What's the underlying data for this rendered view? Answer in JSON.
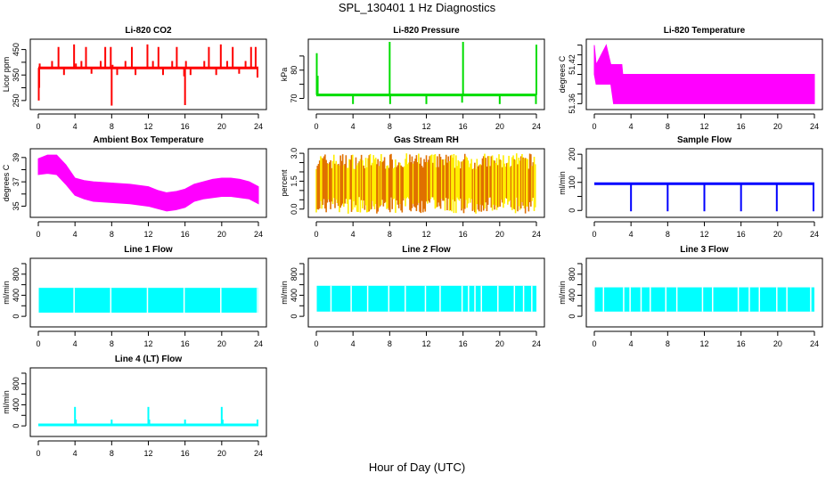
{
  "title": "SPL_130401  1 Hz Diagnostics",
  "x_axis_title": "Hour of Day (UTC)",
  "chart_data": [
    {
      "id": "co2",
      "type": "line",
      "title": "Li-820 CO2",
      "ylabel": "Licor ppm",
      "color": "#ff0000",
      "style": "spiky",
      "xlim": [
        0,
        24
      ],
      "ylim": [
        225,
        480
      ],
      "xticks": [
        0,
        4,
        8,
        12,
        16,
        20,
        24
      ],
      "yticks": [
        250,
        300,
        350,
        400,
        450
      ],
      "ytick_labels": [
        "250",
        "",
        "350",
        "",
        "450"
      ],
      "baseline": 378,
      "spikes": [
        [
          0.05,
          250
        ],
        [
          0.1,
          300
        ],
        [
          0.15,
          395
        ],
        [
          1.5,
          405
        ],
        [
          2.2,
          460
        ],
        [
          2.8,
          350
        ],
        [
          3.9,
          470
        ],
        [
          4.1,
          395
        ],
        [
          4.7,
          405
        ],
        [
          5.2,
          460
        ],
        [
          5.8,
          355
        ],
        [
          6.8,
          405
        ],
        [
          7.3,
          460
        ],
        [
          7.9,
          460
        ],
        [
          8.0,
          230
        ],
        [
          8.1,
          390
        ],
        [
          8.6,
          350
        ],
        [
          9.5,
          405
        ],
        [
          10.2,
          460
        ],
        [
          10.6,
          350
        ],
        [
          11.9,
          470
        ],
        [
          12.5,
          405
        ],
        [
          13.1,
          460
        ],
        [
          13.6,
          350
        ],
        [
          14.6,
          405
        ],
        [
          15.1,
          460
        ],
        [
          15.9,
          345
        ],
        [
          16.0,
          232
        ],
        [
          16.1,
          405
        ],
        [
          16.6,
          350
        ],
        [
          18.1,
          405
        ],
        [
          18.6,
          460
        ],
        [
          19.4,
          350
        ],
        [
          19.9,
          470
        ],
        [
          20.6,
          405
        ],
        [
          21.2,
          460
        ],
        [
          21.9,
          355
        ],
        [
          22.6,
          405
        ],
        [
          23.2,
          460
        ],
        [
          23.7,
          460
        ],
        [
          23.9,
          340
        ]
      ]
    },
    {
      "id": "pressure",
      "type": "line",
      "title": "Li-820 Pressure",
      "ylabel": "kPa",
      "color": "#00dd00",
      "style": "spiky",
      "xlim": [
        0,
        24
      ],
      "ylim": [
        67,
        90
      ],
      "xticks": [
        0,
        4,
        8,
        12,
        16,
        20,
        24
      ],
      "yticks": [
        70,
        75,
        80,
        85
      ],
      "ytick_labels": [
        "70",
        "",
        "80",
        ""
      ],
      "baseline": 71.2,
      "spikes": [
        [
          0.05,
          86
        ],
        [
          0.15,
          78
        ],
        [
          4.0,
          68
        ],
        [
          8.0,
          90
        ],
        [
          8.05,
          68
        ],
        [
          12.0,
          68
        ],
        [
          15.9,
          68.5
        ],
        [
          16.0,
          90
        ],
        [
          20.0,
          68
        ],
        [
          24.0,
          89
        ],
        [
          23.95,
          68
        ]
      ]
    },
    {
      "id": "licor-temp",
      "type": "area",
      "title": "Li-820 Temperature",
      "ylabel": "degrees C",
      "color": "#ff00ff",
      "style": "band",
      "xlim": [
        0,
        24
      ],
      "ylim": [
        51.355,
        51.455
      ],
      "xticks": [
        0,
        4,
        8,
        12,
        16,
        20,
        24
      ],
      "yticks": [
        51.36,
        51.375,
        51.39,
        51.405,
        51.42,
        51.435,
        51.45
      ],
      "ytick_labels": [
        "51.36",
        "",
        "",
        "",
        "51.42",
        "",
        ""
      ],
      "x": [
        0,
        0.2,
        1.3,
        1.8,
        2.1,
        2.3,
        3.0,
        3.1,
        24
      ],
      "upper": [
        51.45,
        51.42,
        51.45,
        51.42,
        51.42,
        51.42,
        51.42,
        51.405,
        51.405
      ],
      "lower": [
        51.405,
        51.39,
        51.39,
        51.39,
        51.36,
        51.36,
        51.36,
        51.36,
        51.36
      ]
    },
    {
      "id": "box-temp",
      "type": "area",
      "title": "Ambient Box Temperature",
      "ylabel": "degrees C",
      "color": "#ff00ff",
      "style": "band",
      "xlim": [
        0,
        24
      ],
      "ylim": [
        34.3,
        39.5
      ],
      "xticks": [
        0,
        4,
        8,
        12,
        16,
        20,
        24
      ],
      "yticks": [
        35,
        36,
        37,
        38,
        39
      ],
      "ytick_labels": [
        "35",
        "",
        "37",
        "",
        "39"
      ],
      "x": [
        0,
        1,
        2,
        3,
        4,
        5,
        6,
        8,
        10,
        12,
        13,
        14,
        15,
        16,
        17,
        18,
        19,
        20,
        21,
        22,
        23,
        24
      ],
      "upper": [
        38.9,
        39.2,
        39.2,
        38.4,
        37.3,
        37.1,
        37.0,
        36.9,
        36.8,
        36.6,
        36.3,
        36.1,
        36.2,
        36.4,
        36.8,
        37.0,
        37.2,
        37.3,
        37.3,
        37.2,
        37.0,
        36.6
      ],
      "lower": [
        37.6,
        37.7,
        37.6,
        36.8,
        35.9,
        35.6,
        35.4,
        35.3,
        35.2,
        35.0,
        34.8,
        34.6,
        34.7,
        34.9,
        35.4,
        35.6,
        35.7,
        35.8,
        35.8,
        35.7,
        35.6,
        35.2
      ]
    },
    {
      "id": "rh",
      "type": "area",
      "title": "Gas Stream RH",
      "ylabel": "percent",
      "color": "#e07000",
      "color2": "#ffee00",
      "style": "noise",
      "xlim": [
        0,
        24
      ],
      "ylim": [
        -0.3,
        3.1
      ],
      "xticks": [
        0,
        4,
        8,
        12,
        16,
        20,
        24
      ],
      "yticks": [
        0,
        0.5,
        1,
        1.5,
        2,
        2.5,
        3
      ],
      "ytick_labels": [
        "0.0",
        "",
        "",
        "1.5",
        "",
        "",
        "3.0"
      ],
      "band_center": 1.4,
      "band_half": 0.75,
      "spike_max": 3.0,
      "spike_min": -0.25
    },
    {
      "id": "sample-flow",
      "type": "line",
      "title": "Sample Flow",
      "ylabel": "ml/min",
      "color": "#0000ff",
      "style": "spiky",
      "xlim": [
        0,
        24
      ],
      "ylim": [
        -15,
        210
      ],
      "xticks": [
        0,
        4,
        8,
        12,
        16,
        20,
        24
      ],
      "yticks": [
        0,
        50,
        100,
        150,
        200
      ],
      "ytick_labels": [
        "0",
        "",
        "100",
        "",
        "200"
      ],
      "baseline": 95,
      "spikes": [
        [
          4.0,
          -3
        ],
        [
          8.0,
          -3
        ],
        [
          12.0,
          -3
        ],
        [
          16.0,
          -3
        ],
        [
          19.9,
          -3
        ],
        [
          23.9,
          -3
        ]
      ]
    },
    {
      "id": "line1-flow",
      "type": "area",
      "title": "Line 1 Flow",
      "ylabel": "ml/min",
      "color": "#00ffff",
      "style": "block",
      "xlim": [
        0,
        24
      ],
      "ylim": [
        -150,
        1050
      ],
      "xticks": [
        0,
        4,
        8,
        12,
        16,
        20,
        24
      ],
      "yticks": [
        0,
        200,
        400,
        600,
        800,
        1000
      ],
      "ytick_labels": [
        "0",
        "",
        "400",
        "",
        "800",
        ""
      ],
      "upper": 540,
      "lower": 70,
      "gaps": [
        3.9,
        7.9,
        11.9,
        15.9,
        19.9,
        23.9
      ]
    },
    {
      "id": "line2-flow",
      "type": "area",
      "title": "Line 2 Flow",
      "ylabel": "ml/min",
      "color": "#00ffff",
      "style": "block",
      "xlim": [
        0,
        24
      ],
      "ylim": [
        -150,
        1050
      ],
      "xticks": [
        0,
        4,
        8,
        12,
        16,
        20,
        24
      ],
      "yticks": [
        0,
        200,
        400,
        600,
        800,
        1000
      ],
      "ytick_labels": [
        "0",
        "",
        "400",
        "",
        "800",
        ""
      ],
      "upper": 580,
      "lower": 90,
      "gaps": [
        1.6,
        3.8,
        5.6,
        7.9,
        9.7,
        11.9,
        13.5,
        15.9,
        16.6,
        17.3,
        18.0,
        19.8,
        21.6,
        22.6,
        23.5
      ]
    },
    {
      "id": "line3-flow",
      "type": "area",
      "title": "Line 3 Flow",
      "ylabel": "ml/min",
      "color": "#00ffff",
      "style": "block",
      "xlim": [
        0,
        24
      ],
      "ylim": [
        -150,
        1050
      ],
      "xticks": [
        0,
        4,
        8,
        12,
        16,
        20,
        24
      ],
      "yticks": [
        0,
        200,
        400,
        600,
        800,
        1000
      ],
      "ytick_labels": [
        "0",
        "",
        "400",
        "",
        "800",
        ""
      ],
      "upper": 550,
      "lower": 90,
      "gaps": [
        1.0,
        3.2,
        3.9,
        5.1,
        6.1,
        7.8,
        9.0,
        11.8,
        12.9,
        15.7,
        16.9,
        18.0,
        19.9,
        21.0,
        23.6
      ]
    },
    {
      "id": "line4-flow",
      "type": "line",
      "title": "Line 4 (LT) Flow",
      "ylabel": "ml/min",
      "color": "#00ffff",
      "style": "spiky",
      "xlim": [
        0,
        24
      ],
      "ylim": [
        -150,
        1050
      ],
      "xticks": [
        0,
        4,
        8,
        12,
        16,
        20,
        24
      ],
      "yticks": [
        0,
        200,
        400,
        600,
        800,
        1000
      ],
      "ytick_labels": [
        "0",
        "",
        "400",
        "",
        "800",
        ""
      ],
      "baseline": 20,
      "spikes": [
        [
          4.0,
          360
        ],
        [
          4.1,
          120
        ],
        [
          8.0,
          120
        ],
        [
          12.0,
          360
        ],
        [
          12.1,
          120
        ],
        [
          16.0,
          120
        ],
        [
          20.0,
          360
        ],
        [
          20.1,
          120
        ],
        [
          23.9,
          120
        ]
      ]
    }
  ]
}
